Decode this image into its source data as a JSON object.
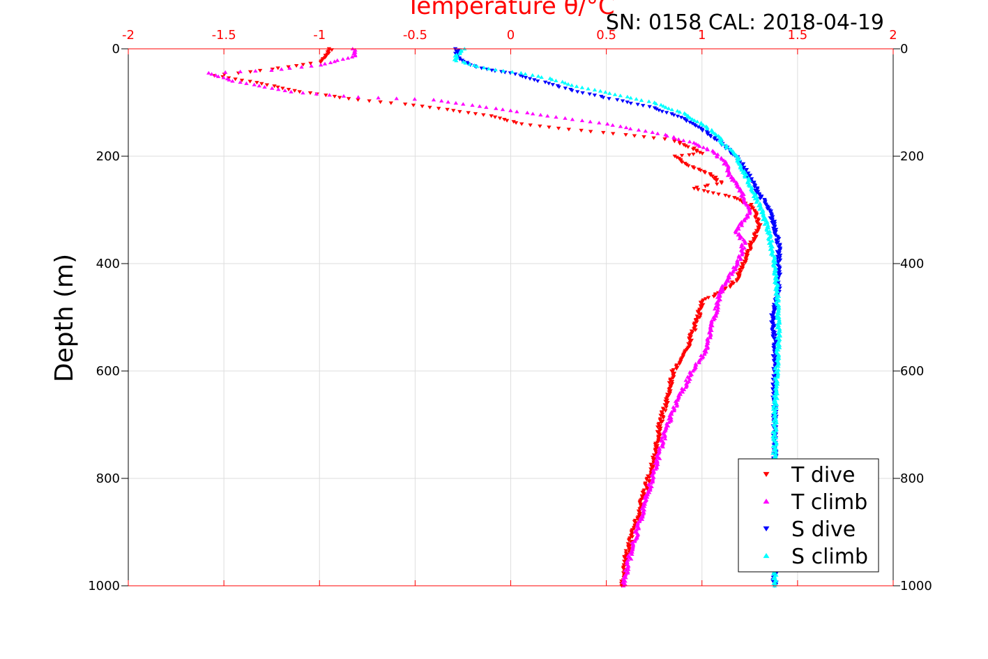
{
  "chart_data": {
    "type": "scatter",
    "title": "",
    "annotation": "SN: 0158  CAL: 2018-04-19",
    "xlabel": "Temperature θ/°C",
    "ylabel": "Depth (m)",
    "xlim": [
      -2,
      2
    ],
    "ylim": [
      0,
      1000
    ],
    "y_reversed": true,
    "grid": true,
    "x_axis_position": "top",
    "x_ticks": [
      -2,
      -1.5,
      -1,
      -0.5,
      0,
      0.5,
      1,
      1.5,
      2
    ],
    "x_tick_labels": [
      "-2",
      "-1.5",
      "-1",
      "-0.5",
      "0",
      "0.5",
      "1",
      "1.5",
      "2"
    ],
    "y_ticks": [
      0,
      200,
      400,
      600,
      800,
      1000
    ],
    "y_tick_labels": [
      "0",
      "200",
      "400",
      "600",
      "800",
      "1000"
    ],
    "legend_position": "bottom-right",
    "series": [
      {
        "name": "T dive",
        "color": "#ff0000",
        "marker": "triangle-down",
        "points": [
          [
            -0.94,
            0
          ],
          [
            -0.96,
            10
          ],
          [
            -1.0,
            25
          ],
          [
            -1.25,
            38
          ],
          [
            -1.55,
            50
          ],
          [
            -1.3,
            65
          ],
          [
            -1.1,
            80
          ],
          [
            -0.8,
            95
          ],
          [
            -0.5,
            105
          ],
          [
            -0.3,
            115
          ],
          [
            -0.1,
            125
          ],
          [
            0.05,
            140
          ],
          [
            0.3,
            150
          ],
          [
            0.6,
            160
          ],
          [
            0.85,
            170
          ],
          [
            0.95,
            185
          ],
          [
            1.0,
            195
          ],
          [
            0.85,
            200
          ],
          [
            0.95,
            220
          ],
          [
            1.05,
            235
          ],
          [
            1.1,
            250
          ],
          [
            0.95,
            260
          ],
          [
            1.15,
            275
          ],
          [
            1.25,
            290
          ],
          [
            1.28,
            310
          ],
          [
            1.3,
            330
          ],
          [
            1.26,
            360
          ],
          [
            1.22,
            400
          ],
          [
            1.18,
            430
          ],
          [
            1.12,
            450
          ],
          [
            1.0,
            470
          ],
          [
            0.98,
            500
          ],
          [
            0.95,
            530
          ],
          [
            0.92,
            560
          ],
          [
            0.85,
            600
          ],
          [
            0.82,
            650
          ],
          [
            0.78,
            700
          ],
          [
            0.76,
            750
          ],
          [
            0.72,
            800
          ],
          [
            0.68,
            850
          ],
          [
            0.64,
            900
          ],
          [
            0.6,
            950
          ],
          [
            0.58,
            1000
          ]
        ]
      },
      {
        "name": "T climb",
        "color": "#ff00ff",
        "marker": "triangle-up",
        "points": [
          [
            -0.82,
            0
          ],
          [
            -0.82,
            15
          ],
          [
            -1.0,
            30
          ],
          [
            -1.25,
            40
          ],
          [
            -1.58,
            45
          ],
          [
            -1.45,
            60
          ],
          [
            -1.15,
            80
          ],
          [
            -0.8,
            90
          ],
          [
            -0.4,
            95
          ],
          [
            -0.2,
            105
          ],
          [
            0.0,
            115
          ],
          [
            0.2,
            125
          ],
          [
            0.5,
            140
          ],
          [
            0.8,
            160
          ],
          [
            0.95,
            175
          ],
          [
            1.05,
            190
          ],
          [
            1.12,
            210
          ],
          [
            1.15,
            240
          ],
          [
            1.2,
            260
          ],
          [
            1.22,
            280
          ],
          [
            1.25,
            300
          ],
          [
            1.22,
            320
          ],
          [
            1.18,
            340
          ],
          [
            1.22,
            360
          ],
          [
            1.2,
            390
          ],
          [
            1.15,
            420
          ],
          [
            1.1,
            450
          ],
          [
            1.08,
            480
          ],
          [
            1.05,
            520
          ],
          [
            1.02,
            560
          ],
          [
            0.95,
            600
          ],
          [
            0.88,
            650
          ],
          [
            0.82,
            700
          ],
          [
            0.78,
            750
          ],
          [
            0.74,
            800
          ],
          [
            0.7,
            850
          ],
          [
            0.66,
            900
          ],
          [
            0.62,
            950
          ],
          [
            0.59,
            1000
          ]
        ]
      },
      {
        "name": "S dive",
        "color": "#0000ff",
        "marker": "triangle-down",
        "points": [
          [
            -0.28,
            0
          ],
          [
            -0.28,
            15
          ],
          [
            -0.22,
            30
          ],
          [
            -0.1,
            40
          ],
          [
            0.0,
            45
          ],
          [
            0.15,
            60
          ],
          [
            0.35,
            80
          ],
          [
            0.55,
            95
          ],
          [
            0.75,
            110
          ],
          [
            0.9,
            130
          ],
          [
            1.0,
            150
          ],
          [
            1.08,
            170
          ],
          [
            1.15,
            190
          ],
          [
            1.2,
            210
          ],
          [
            1.25,
            240
          ],
          [
            1.3,
            270
          ],
          [
            1.35,
            300
          ],
          [
            1.38,
            330
          ],
          [
            1.4,
            360
          ],
          [
            1.4,
            400
          ],
          [
            1.4,
            450
          ],
          [
            1.37,
            500
          ],
          [
            1.38,
            550
          ],
          [
            1.38,
            600
          ],
          [
            1.38,
            700
          ],
          [
            1.38,
            800
          ],
          [
            1.38,
            900
          ],
          [
            1.38,
            1000
          ]
        ]
      },
      {
        "name": "S climb",
        "color": "#00ffff",
        "marker": "triangle-up",
        "points": [
          [
            -0.25,
            0
          ],
          [
            -0.3,
            20
          ],
          [
            -0.15,
            35
          ],
          [
            0.05,
            45
          ],
          [
            0.2,
            55
          ],
          [
            0.35,
            70
          ],
          [
            0.55,
            85
          ],
          [
            0.75,
            100
          ],
          [
            0.9,
            120
          ],
          [
            1.0,
            140
          ],
          [
            1.08,
            160
          ],
          [
            1.12,
            180
          ],
          [
            1.18,
            200
          ],
          [
            1.22,
            230
          ],
          [
            1.26,
            260
          ],
          [
            1.3,
            290
          ],
          [
            1.33,
            320
          ],
          [
            1.36,
            360
          ],
          [
            1.38,
            400
          ],
          [
            1.39,
            450
          ],
          [
            1.4,
            500
          ],
          [
            1.4,
            550
          ],
          [
            1.39,
            600
          ],
          [
            1.38,
            700
          ],
          [
            1.38,
            800
          ],
          [
            1.38,
            900
          ],
          [
            1.38,
            1000
          ]
        ]
      }
    ]
  }
}
